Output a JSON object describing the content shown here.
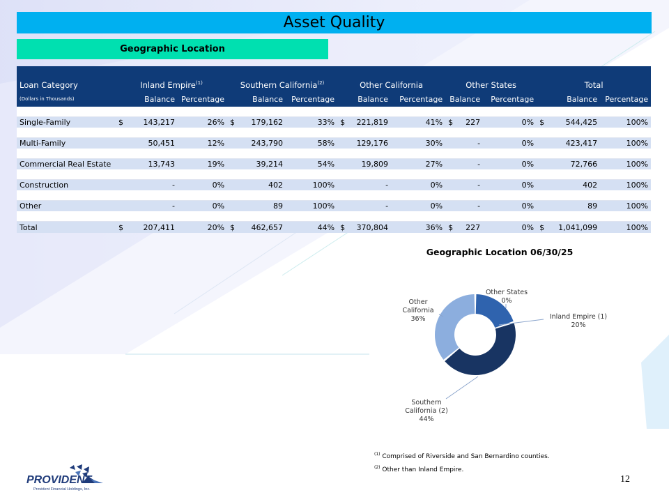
{
  "title": "Asset Quality",
  "subtitle": "Geographic Location",
  "table": {
    "col_loan_category": "Loan Category",
    "units_note": "(Dollars in Thousands)",
    "groups": [
      {
        "name": "Inland Empire",
        "sup": "(1)"
      },
      {
        "name": "Southern California",
        "sup": "(2)"
      },
      {
        "name": "Other California",
        "sup": ""
      },
      {
        "name": "Other States",
        "sup": ""
      },
      {
        "name": "Total",
        "sup": ""
      }
    ],
    "sub_balance": "Balance",
    "sub_percentage": "Percentage",
    "rows": [
      {
        "label": "Single-Family",
        "c": [
          [
            "$",
            "143,217",
            "26%"
          ],
          [
            "$",
            "179,162",
            "33%"
          ],
          [
            "$",
            "221,819",
            "41%"
          ],
          [
            "$",
            "227",
            "0%"
          ],
          [
            "$",
            "544,425",
            "100%"
          ]
        ]
      },
      {
        "label": "Multi-Family",
        "c": [
          [
            "",
            "50,451",
            "12%"
          ],
          [
            "",
            "243,790",
            "58%"
          ],
          [
            "",
            "129,176",
            "30%"
          ],
          [
            "",
            "-",
            "0%"
          ],
          [
            "",
            "423,417",
            "100%"
          ]
        ]
      },
      {
        "label": "Commercial Real Estate",
        "c": [
          [
            "",
            "13,743",
            "19%"
          ],
          [
            "",
            "39,214",
            "54%"
          ],
          [
            "",
            "19,809",
            "27%"
          ],
          [
            "",
            "-",
            "0%"
          ],
          [
            "",
            "72,766",
            "100%"
          ]
        ]
      },
      {
        "label": "Construction",
        "c": [
          [
            "",
            "-",
            "0%"
          ],
          [
            "",
            "402",
            "100%"
          ],
          [
            "",
            "-",
            "0%"
          ],
          [
            "",
            "-",
            "0%"
          ],
          [
            "",
            "402",
            "100%"
          ]
        ]
      },
      {
        "label": "Other",
        "c": [
          [
            "",
            "-",
            "0%"
          ],
          [
            "",
            "89",
            "100%"
          ],
          [
            "",
            "-",
            "0%"
          ],
          [
            "",
            "-",
            "0%"
          ],
          [
            "",
            "89",
            "100%"
          ]
        ]
      }
    ],
    "total": {
      "label": "Total",
      "c": [
        [
          "$",
          "207,411",
          "20%"
        ],
        [
          "$",
          "462,657",
          "44%"
        ],
        [
          "$",
          "370,804",
          "36%"
        ],
        [
          "$",
          "227",
          "0%"
        ],
        [
          "$",
          "1,041,099",
          "100%"
        ]
      ]
    }
  },
  "chart_data": {
    "type": "pie",
    "title": "Geographic Location 06/30/25",
    "labels": [
      "Inland Empire (1)",
      "Southern California (2)",
      "Other California",
      "Other States"
    ],
    "values": [
      20,
      44,
      36,
      0
    ],
    "value_labels": [
      "20%",
      "44%",
      "36%",
      "0%"
    ],
    "colors": [
      "#2f63ae",
      "#183462",
      "#8caede",
      "#4a74b8"
    ]
  },
  "footnotes": [
    {
      "sup": "(1)",
      "text": "Comprised of Riverside and San Bernardino counties."
    },
    {
      "sup": "(2)",
      "text": "Other than Inland Empire."
    }
  ],
  "page_number": "12",
  "logo": {
    "name": "PROVIDENT",
    "tagline": "Provident Financial Holdings, Inc."
  }
}
